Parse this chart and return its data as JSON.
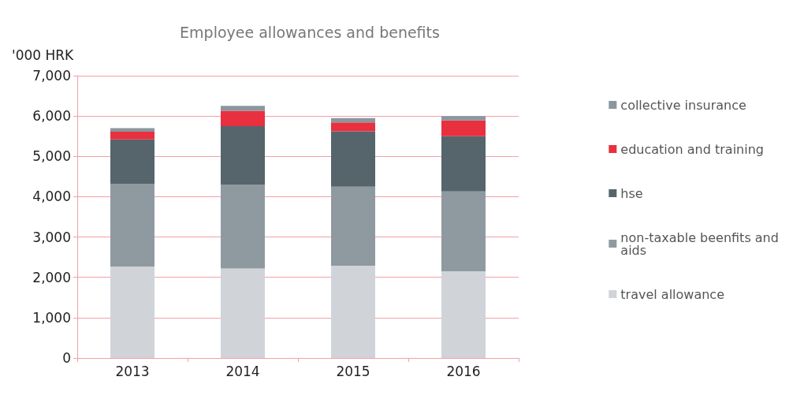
{
  "chart_data": {
    "type": "bar",
    "title": "Employee allowances and benefits",
    "ylabel": "'000 HRK",
    "stacked": true,
    "categories": [
      "2013",
      "2014",
      "2015",
      "2016"
    ],
    "series": [
      {
        "name": "travel allowance",
        "color": "#d0d3d8",
        "values": [
          2270,
          2220,
          2290,
          2150
        ]
      },
      {
        "name": "non-taxable beenfits and aids",
        "color": "#8f9aa0",
        "values": [
          2050,
          2070,
          1960,
          1980
        ]
      },
      {
        "name": "hse",
        "color": "#56656c",
        "values": [
          1100,
          1460,
          1370,
          1370
        ]
      },
      {
        "name": "education and training",
        "color": "#e8303f",
        "values": [
          190,
          380,
          220,
          390
        ]
      },
      {
        "name": "collective insurance",
        "color": "#8a979e",
        "values": [
          90,
          120,
          110,
          110
        ]
      }
    ],
    "ylim": [
      0,
      7000
    ],
    "yticks": [
      0,
      {
        "value": 1000,
        "label": "1,000"
      },
      {
        "value": 2000,
        "label": "2,000"
      },
      {
        "value": 3000,
        "label": "3,000"
      },
      {
        "value": 4000,
        "label": "4,000"
      },
      {
        "value": 5000,
        "label": "5,000"
      },
      {
        "value": 6000,
        "label": "6,000"
      },
      {
        "value": 7000,
        "label": "7,000"
      }
    ],
    "grid": "y",
    "legend": "right"
  }
}
